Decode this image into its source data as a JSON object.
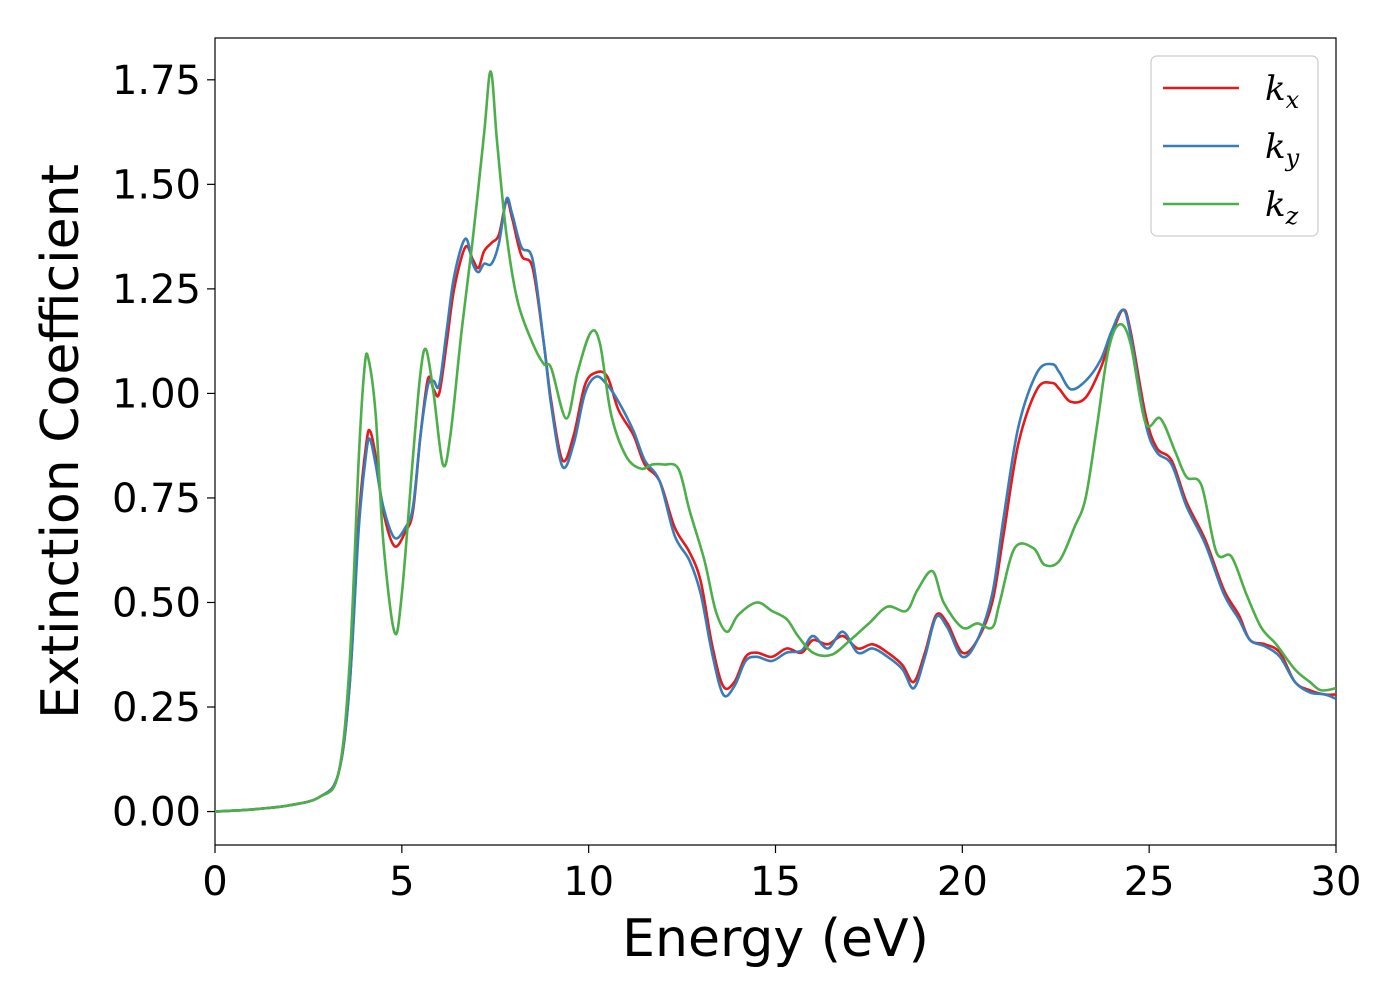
{
  "chart_data": {
    "type": "line",
    "title": "",
    "xlabel": "Energy (eV)",
    "ylabel": "Extinction Coefficient",
    "xlim": [
      0,
      30
    ],
    "ylim": [
      -0.08,
      1.85
    ],
    "xticks": [
      "0",
      "5",
      "10",
      "15",
      "20",
      "25",
      "30"
    ],
    "yticks": [
      "0.00",
      "0.25",
      "0.50",
      "0.75",
      "1.00",
      "1.25",
      "1.50",
      "1.75"
    ],
    "grid": false,
    "legend": "top-right",
    "series": [
      {
        "name": "k",
        "subscript": "x",
        "color": "#e41a1c",
        "points": [
          [
            0,
            0
          ],
          [
            1,
            0.005
          ],
          [
            2,
            0.015
          ],
          [
            2.8,
            0.035
          ],
          [
            3.3,
            0.09
          ],
          [
            3.6,
            0.3
          ],
          [
            3.85,
            0.7
          ],
          [
            4.05,
            0.88
          ],
          [
            4.15,
            0.91
          ],
          [
            4.3,
            0.85
          ],
          [
            4.5,
            0.72
          ],
          [
            4.8,
            0.635
          ],
          [
            5.1,
            0.67
          ],
          [
            5.3,
            0.72
          ],
          [
            5.5,
            0.9
          ],
          [
            5.7,
            1.035
          ],
          [
            5.85,
            1.01
          ],
          [
            6.0,
            1.0
          ],
          [
            6.2,
            1.12
          ],
          [
            6.4,
            1.25
          ],
          [
            6.7,
            1.35
          ],
          [
            6.9,
            1.32
          ],
          [
            7.05,
            1.3
          ],
          [
            7.2,
            1.34
          ],
          [
            7.4,
            1.36
          ],
          [
            7.6,
            1.38
          ],
          [
            7.8,
            1.46
          ],
          [
            7.95,
            1.42
          ],
          [
            8.2,
            1.33
          ],
          [
            8.5,
            1.3
          ],
          [
            8.8,
            1.12
          ],
          [
            9.0,
            0.98
          ],
          [
            9.3,
            0.84
          ],
          [
            9.6,
            0.9
          ],
          [
            9.9,
            1.02
          ],
          [
            10.2,
            1.05
          ],
          [
            10.5,
            1.04
          ],
          [
            10.8,
            0.96
          ],
          [
            11.2,
            0.9
          ],
          [
            11.5,
            0.83
          ],
          [
            11.9,
            0.79
          ],
          [
            12.3,
            0.68
          ],
          [
            12.7,
            0.62
          ],
          [
            13.0,
            0.55
          ],
          [
            13.3,
            0.4
          ],
          [
            13.6,
            0.3
          ],
          [
            13.9,
            0.31
          ],
          [
            14.2,
            0.37
          ],
          [
            14.5,
            0.38
          ],
          [
            14.9,
            0.37
          ],
          [
            15.3,
            0.39
          ],
          [
            15.7,
            0.38
          ],
          [
            16.0,
            0.41
          ],
          [
            16.4,
            0.4
          ],
          [
            16.8,
            0.42
          ],
          [
            17.2,
            0.39
          ],
          [
            17.6,
            0.4
          ],
          [
            18.0,
            0.38
          ],
          [
            18.4,
            0.35
          ],
          [
            18.7,
            0.31
          ],
          [
            19.0,
            0.38
          ],
          [
            19.3,
            0.47
          ],
          [
            19.6,
            0.45
          ],
          [
            20.0,
            0.38
          ],
          [
            20.4,
            0.41
          ],
          [
            20.8,
            0.5
          ],
          [
            21.1,
            0.66
          ],
          [
            21.5,
            0.88
          ],
          [
            22.0,
            1.01
          ],
          [
            22.4,
            1.025
          ],
          [
            22.6,
            1.01
          ],
          [
            22.9,
            0.98
          ],
          [
            23.3,
            0.99
          ],
          [
            23.7,
            1.06
          ],
          [
            24.0,
            1.14
          ],
          [
            24.3,
            1.2
          ],
          [
            24.5,
            1.15
          ],
          [
            24.9,
            0.95
          ],
          [
            25.2,
            0.87
          ],
          [
            25.6,
            0.84
          ],
          [
            26.0,
            0.74
          ],
          [
            26.5,
            0.65
          ],
          [
            27.0,
            0.53
          ],
          [
            27.4,
            0.47
          ],
          [
            27.7,
            0.41
          ],
          [
            28.1,
            0.4
          ],
          [
            28.5,
            0.38
          ],
          [
            28.9,
            0.31
          ],
          [
            29.3,
            0.29
          ],
          [
            29.7,
            0.28
          ],
          [
            30,
            0.28
          ]
        ]
      },
      {
        "name": "k",
        "subscript": "y",
        "color": "#377eb8",
        "points": [
          [
            0,
            0
          ],
          [
            1,
            0.005
          ],
          [
            2,
            0.015
          ],
          [
            2.8,
            0.035
          ],
          [
            3.3,
            0.09
          ],
          [
            3.6,
            0.3
          ],
          [
            3.85,
            0.68
          ],
          [
            4.05,
            0.86
          ],
          [
            4.15,
            0.89
          ],
          [
            4.3,
            0.83
          ],
          [
            4.5,
            0.73
          ],
          [
            4.8,
            0.655
          ],
          [
            5.1,
            0.68
          ],
          [
            5.3,
            0.73
          ],
          [
            5.5,
            0.9
          ],
          [
            5.7,
            1.02
          ],
          [
            5.85,
            1.03
          ],
          [
            6.0,
            1.02
          ],
          [
            6.2,
            1.15
          ],
          [
            6.4,
            1.28
          ],
          [
            6.7,
            1.37
          ],
          [
            6.9,
            1.31
          ],
          [
            7.05,
            1.29
          ],
          [
            7.2,
            1.31
          ],
          [
            7.4,
            1.31
          ],
          [
            7.6,
            1.36
          ],
          [
            7.8,
            1.465
          ],
          [
            7.95,
            1.43
          ],
          [
            8.2,
            1.35
          ],
          [
            8.5,
            1.32
          ],
          [
            8.8,
            1.12
          ],
          [
            9.0,
            0.97
          ],
          [
            9.3,
            0.825
          ],
          [
            9.6,
            0.88
          ],
          [
            9.9,
            1.0
          ],
          [
            10.2,
            1.04
          ],
          [
            10.5,
            1.02
          ],
          [
            10.8,
            0.98
          ],
          [
            11.2,
            0.91
          ],
          [
            11.5,
            0.84
          ],
          [
            11.9,
            0.79
          ],
          [
            12.3,
            0.66
          ],
          [
            12.7,
            0.6
          ],
          [
            13.0,
            0.52
          ],
          [
            13.3,
            0.38
          ],
          [
            13.6,
            0.28
          ],
          [
            13.9,
            0.3
          ],
          [
            14.2,
            0.36
          ],
          [
            14.5,
            0.37
          ],
          [
            14.9,
            0.36
          ],
          [
            15.3,
            0.38
          ],
          [
            15.7,
            0.385
          ],
          [
            16.0,
            0.42
          ],
          [
            16.4,
            0.39
          ],
          [
            16.8,
            0.43
          ],
          [
            17.2,
            0.38
          ],
          [
            17.6,
            0.39
          ],
          [
            18.0,
            0.37
          ],
          [
            18.4,
            0.34
          ],
          [
            18.7,
            0.295
          ],
          [
            19.0,
            0.37
          ],
          [
            19.3,
            0.465
          ],
          [
            19.6,
            0.44
          ],
          [
            20.0,
            0.37
          ],
          [
            20.4,
            0.41
          ],
          [
            20.8,
            0.52
          ],
          [
            21.1,
            0.7
          ],
          [
            21.5,
            0.92
          ],
          [
            22.0,
            1.05
          ],
          [
            22.4,
            1.07
          ],
          [
            22.6,
            1.05
          ],
          [
            22.9,
            1.01
          ],
          [
            23.3,
            1.03
          ],
          [
            23.7,
            1.08
          ],
          [
            24.0,
            1.15
          ],
          [
            24.3,
            1.2
          ],
          [
            24.5,
            1.14
          ],
          [
            24.9,
            0.93
          ],
          [
            25.2,
            0.86
          ],
          [
            25.6,
            0.83
          ],
          [
            26.0,
            0.73
          ],
          [
            26.5,
            0.64
          ],
          [
            27.0,
            0.52
          ],
          [
            27.4,
            0.46
          ],
          [
            27.7,
            0.41
          ],
          [
            28.1,
            0.395
          ],
          [
            28.5,
            0.37
          ],
          [
            28.9,
            0.31
          ],
          [
            29.3,
            0.285
          ],
          [
            29.7,
            0.28
          ],
          [
            30,
            0.27
          ]
        ]
      },
      {
        "name": "k",
        "subscript": "z",
        "color": "#4daf4a",
        "points": [
          [
            0,
            0
          ],
          [
            1,
            0.005
          ],
          [
            2,
            0.015
          ],
          [
            2.8,
            0.035
          ],
          [
            3.3,
            0.09
          ],
          [
            3.6,
            0.35
          ],
          [
            3.85,
            0.85
          ],
          [
            4.0,
            1.06
          ],
          [
            4.1,
            1.085
          ],
          [
            4.3,
            0.95
          ],
          [
            4.5,
            0.65
          ],
          [
            4.8,
            0.43
          ],
          [
            5.0,
            0.52
          ],
          [
            5.3,
            0.85
          ],
          [
            5.5,
            1.05
          ],
          [
            5.65,
            1.105
          ],
          [
            5.85,
            1.0
          ],
          [
            6.1,
            0.83
          ],
          [
            6.3,
            0.9
          ],
          [
            6.6,
            1.15
          ],
          [
            6.9,
            1.37
          ],
          [
            7.2,
            1.62
          ],
          [
            7.38,
            1.77
          ],
          [
            7.55,
            1.6
          ],
          [
            7.8,
            1.38
          ],
          [
            8.1,
            1.22
          ],
          [
            8.5,
            1.12
          ],
          [
            8.8,
            1.07
          ],
          [
            9.0,
            1.06
          ],
          [
            9.4,
            0.94
          ],
          [
            9.7,
            1.05
          ],
          [
            10.05,
            1.145
          ],
          [
            10.3,
            1.12
          ],
          [
            10.6,
            0.95
          ],
          [
            11.0,
            0.85
          ],
          [
            11.4,
            0.82
          ],
          [
            11.7,
            0.83
          ],
          [
            12.0,
            0.83
          ],
          [
            12.4,
            0.82
          ],
          [
            12.7,
            0.72
          ],
          [
            13.1,
            0.6
          ],
          [
            13.4,
            0.48
          ],
          [
            13.7,
            0.43
          ],
          [
            14.0,
            0.47
          ],
          [
            14.5,
            0.5
          ],
          [
            14.9,
            0.48
          ],
          [
            15.3,
            0.46
          ],
          [
            15.6,
            0.42
          ],
          [
            16.0,
            0.38
          ],
          [
            16.5,
            0.375
          ],
          [
            17.0,
            0.41
          ],
          [
            17.5,
            0.45
          ],
          [
            18.0,
            0.49
          ],
          [
            18.5,
            0.48
          ],
          [
            18.8,
            0.53
          ],
          [
            19.2,
            0.575
          ],
          [
            19.5,
            0.5
          ],
          [
            20.0,
            0.44
          ],
          [
            20.4,
            0.45
          ],
          [
            20.8,
            0.44
          ],
          [
            21.0,
            0.5
          ],
          [
            21.4,
            0.63
          ],
          [
            21.9,
            0.63
          ],
          [
            22.2,
            0.59
          ],
          [
            22.6,
            0.6
          ],
          [
            23.0,
            0.68
          ],
          [
            23.3,
            0.75
          ],
          [
            23.6,
            0.92
          ],
          [
            23.9,
            1.1
          ],
          [
            24.2,
            1.165
          ],
          [
            24.5,
            1.12
          ],
          [
            24.9,
            0.93
          ],
          [
            25.3,
            0.94
          ],
          [
            25.7,
            0.86
          ],
          [
            26.0,
            0.8
          ],
          [
            26.4,
            0.78
          ],
          [
            26.8,
            0.62
          ],
          [
            27.2,
            0.61
          ],
          [
            27.6,
            0.52
          ],
          [
            28.0,
            0.44
          ],
          [
            28.4,
            0.4
          ],
          [
            28.9,
            0.34
          ],
          [
            29.3,
            0.31
          ],
          [
            29.6,
            0.29
          ],
          [
            30,
            0.295
          ]
        ]
      }
    ]
  }
}
